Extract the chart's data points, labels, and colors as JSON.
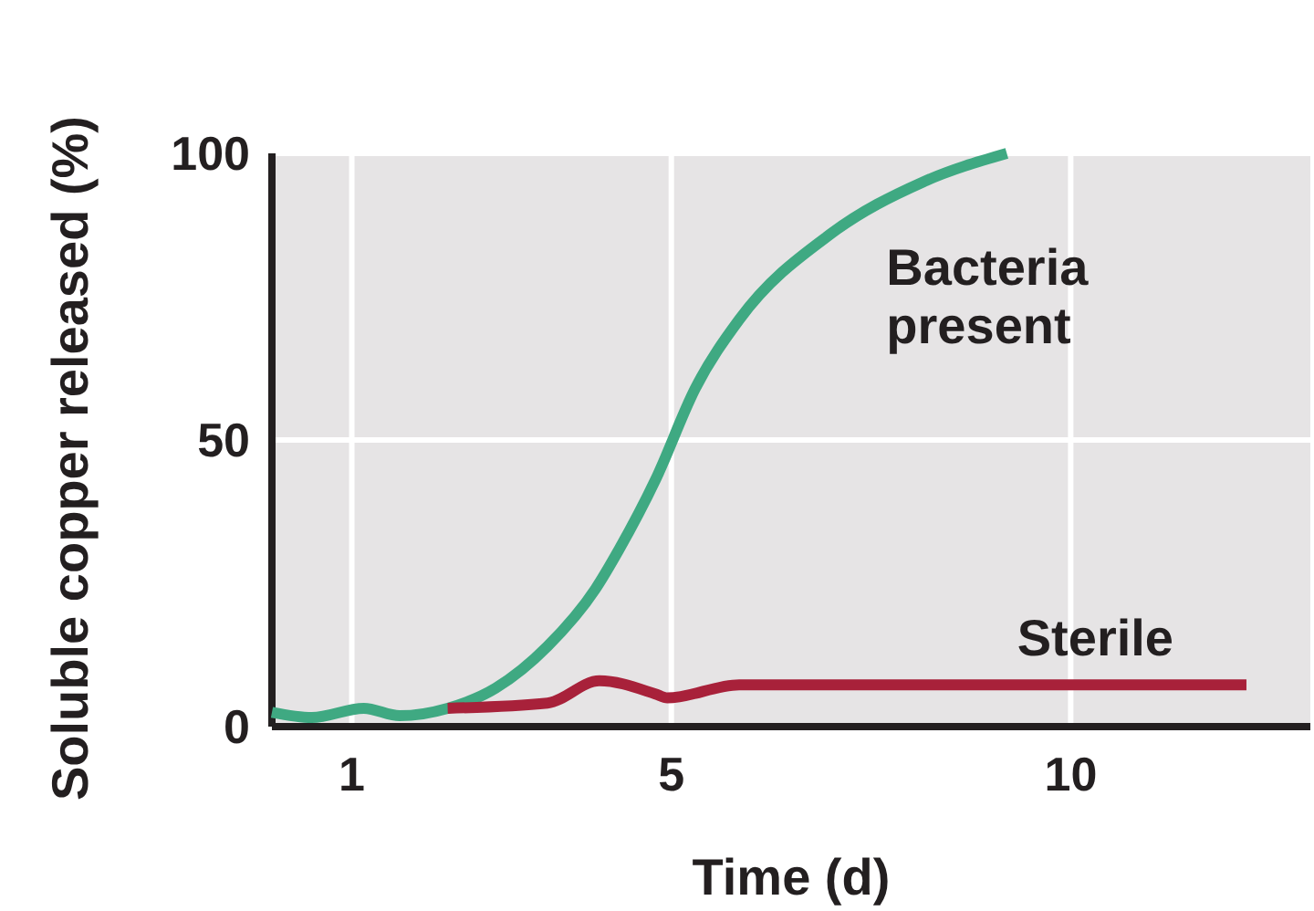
{
  "chart_data": {
    "type": "line",
    "xlabel": "Time (d)",
    "ylabel": "Soluble copper released (%)",
    "xlim": [
      0,
      13
    ],
    "ylim": [
      0,
      100
    ],
    "xticks": [
      1,
      5,
      10
    ],
    "yticks": [
      0,
      50,
      100
    ],
    "grid": true,
    "marker": "none",
    "line_style": "solid",
    "series": [
      {
        "name": "Bacteria present",
        "color": "#3fa982",
        "x": [
          0,
          0.5,
          1.15,
          1.6,
          2.2,
          2.8,
          3.45,
          4.05,
          4.35,
          4.8,
          5.3,
          5.85,
          7.0,
          8.15,
          9.2
        ],
        "values": [
          2.5,
          1.6,
          3.2,
          1.9,
          3.2,
          6.7,
          14,
          24,
          31,
          43,
          59,
          71,
          86,
          95,
          100
        ]
      },
      {
        "name": "Sterile",
        "color": "#a8213a",
        "x": [
          2.2,
          3.45,
          4.1,
          4.8,
          4.95,
          5.85,
          12.2
        ],
        "values": [
          3.2,
          4.1,
          8,
          5.7,
          5,
          7.3,
          7.3
        ]
      }
    ]
  }
}
